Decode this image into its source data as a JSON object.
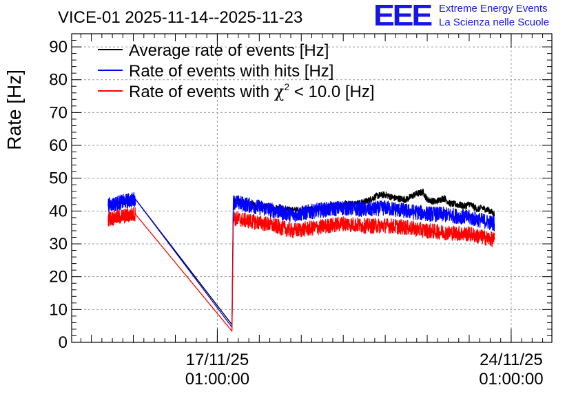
{
  "chart_data": {
    "type": "line",
    "title": "VICE-01 2025-11-14--2025-11-23",
    "xlabel": "",
    "ylabel": "Rate [Hz]",
    "ylim": [
      0,
      94
    ],
    "yticks": [
      0,
      10,
      20,
      30,
      40,
      50,
      60,
      70,
      80,
      90
    ],
    "ytick_labels": [
      "0",
      "10",
      "20",
      "30",
      "40",
      "50",
      "60",
      "70",
      "80",
      "90"
    ],
    "x_unit": "days since 17/11/25 01:00:00",
    "xlim": [
      -3.47,
      7.97
    ],
    "xticks": [
      {
        "x": 0,
        "date": "17/11/25",
        "time": "01:00:00"
      },
      {
        "x": 7,
        "date": "24/11/25",
        "time": "01:00:00"
      }
    ],
    "grid": true,
    "legend_position": "top-left",
    "series": [
      {
        "name": "Average rate of events [Hz]",
        "color": "#000000",
        "noise": 1.0,
        "points": [
          [
            -2.6,
            41.8
          ],
          [
            -1.95,
            43.6
          ],
          [
            0.35,
            5.4
          ],
          [
            0.38,
            43.0
          ],
          [
            1.2,
            41.2
          ],
          [
            1.8,
            40.2
          ],
          [
            2.4,
            40.6
          ],
          [
            3.0,
            42.0
          ],
          [
            3.4,
            42.4
          ],
          [
            3.6,
            43.2
          ],
          [
            3.8,
            44.6
          ],
          [
            4.0,
            45.0
          ],
          [
            4.2,
            44.0
          ],
          [
            4.5,
            43.5
          ],
          [
            4.7,
            45.0
          ],
          [
            4.9,
            45.8
          ],
          [
            5.0,
            43.5
          ],
          [
            5.2,
            42.8
          ],
          [
            5.4,
            44.0
          ],
          [
            5.55,
            42.2
          ],
          [
            5.7,
            42.0
          ],
          [
            5.9,
            41.5
          ],
          [
            6.0,
            42.2
          ],
          [
            6.2,
            40.5
          ],
          [
            6.3,
            41.0
          ],
          [
            6.5,
            40.0
          ],
          [
            6.6,
            39.0
          ]
        ]
      },
      {
        "name": "Rate of events with hits [Hz]",
        "color": "#0000ff",
        "noise": 2.3,
        "points": [
          [
            -2.6,
            41.8
          ],
          [
            -1.95,
            43.6
          ],
          [
            0.35,
            4.6
          ],
          [
            0.38,
            42.8
          ],
          [
            1.2,
            40.6
          ],
          [
            1.8,
            38.8
          ],
          [
            2.4,
            40.2
          ],
          [
            3.0,
            41.0
          ],
          [
            3.6,
            40.4
          ],
          [
            4.0,
            41.0
          ],
          [
            4.5,
            40.0
          ],
          [
            5.0,
            39.2
          ],
          [
            5.5,
            38.8
          ],
          [
            6.0,
            38.0
          ],
          [
            6.6,
            36.2
          ]
        ]
      },
      {
        "name": "Rate of events with χ² < 10.0 [Hz]",
        "color": "#ff0000",
        "noise": 2.3,
        "points": [
          [
            -2.6,
            37.6
          ],
          [
            -1.95,
            39.0
          ],
          [
            0.35,
            3.4
          ],
          [
            0.38,
            37.8
          ],
          [
            1.2,
            36.0
          ],
          [
            1.8,
            34.0
          ],
          [
            2.4,
            35.0
          ],
          [
            3.0,
            36.2
          ],
          [
            3.6,
            35.4
          ],
          [
            4.0,
            35.6
          ],
          [
            4.5,
            35.0
          ],
          [
            5.0,
            34.0
          ],
          [
            5.5,
            33.4
          ],
          [
            6.0,
            33.0
          ],
          [
            6.6,
            31.2
          ]
        ]
      }
    ]
  },
  "legend": {
    "entry1": "Average rate of events [Hz]",
    "entry2": "Rate of events with hits [Hz]",
    "entry3_prefix": "Rate of events with ",
    "entry3_chi": "χ",
    "entry3_sup": "2",
    "entry3_suffix": " < 10.0 [Hz]"
  },
  "logo": {
    "mark": "EEE",
    "line1": "Extreme Energy Events",
    "line2": "La Scienza nelle Scuole",
    "color": "#1515e6"
  }
}
